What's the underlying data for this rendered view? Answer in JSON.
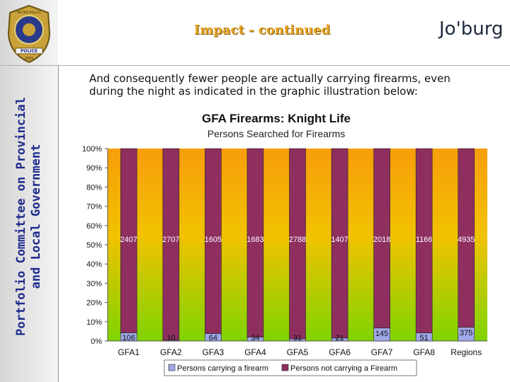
{
  "header": {
    "title": "Impact - continued",
    "logo_text": "Jo'burg",
    "badge_top": "METRO POLICE",
    "badge_bottom": "POLICE",
    "badge_year": "2001"
  },
  "sidebar": {
    "line1": "Portfolio Committee on Provincial",
    "line2": "and Local Government"
  },
  "body": {
    "intro": "And consequently fewer people are actually carrying firearms, even during the night as indicated in the graphic illustration below:"
  },
  "colors": {
    "carrying": "#9fa8e8",
    "not_carrying": "#8e2f5f",
    "accent": "#e8a21e",
    "sidebar_text": "#1d2a8c"
  },
  "chart_data": {
    "type": "bar",
    "stacked": "percent",
    "title": "GFA Firearms: Knight Life",
    "subtitle": "Persons Searched for Firearms",
    "categories": [
      "GFA1",
      "GFA2",
      "GFA3",
      "GFA4",
      "GFA5",
      "GFA6",
      "GFA7",
      "GFA8",
      "Regions"
    ],
    "series": [
      {
        "name": "Persons carrying a firearm",
        "values": [
          106,
          10,
          64,
          34,
          31,
          21,
          145,
          51,
          375
        ]
      },
      {
        "name": "Persons not carrying a Firearm",
        "values": [
          2407,
          2707,
          1605,
          1683,
          2788,
          1407,
          2018,
          1166,
          4935
        ]
      }
    ],
    "yticks": [
      "0%",
      "10%",
      "20%",
      "30%",
      "40%",
      "50%",
      "60%",
      "70%",
      "80%",
      "90%",
      "100%"
    ],
    "ylim": [
      0,
      100
    ],
    "legend": "bottom"
  }
}
